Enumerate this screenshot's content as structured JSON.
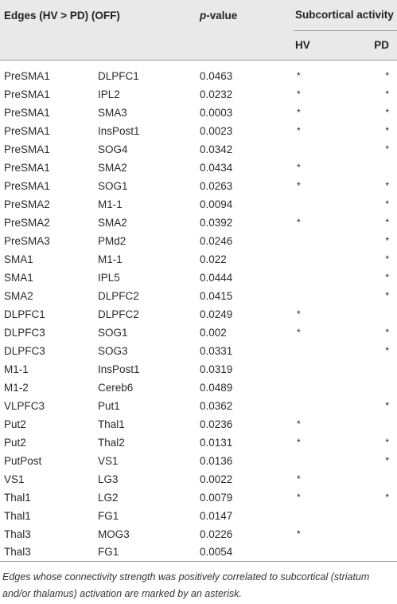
{
  "header": {
    "edges": "Edges (HV > PD) (OFF)",
    "pvalue_italic": "p",
    "pvalue_rest": "-value",
    "subcortical": "Subcortical activity",
    "hv": "HV",
    "pd": "PD"
  },
  "rows": [
    {
      "from": "PreSMA1",
      "to": "DLPFC1",
      "p": "0.0463",
      "hv": "*",
      "pd": "*"
    },
    {
      "from": "PreSMA1",
      "to": "IPL2",
      "p": "0.0232",
      "hv": "*",
      "pd": "*"
    },
    {
      "from": "PreSMA1",
      "to": "SMA3",
      "p": "0.0003",
      "hv": "*",
      "pd": "*"
    },
    {
      "from": "PreSMA1",
      "to": "InsPost1",
      "p": "0.0023",
      "hv": "*",
      "pd": "*"
    },
    {
      "from": "PreSMA1",
      "to": "SOG4",
      "p": "0.0342",
      "hv": "",
      "pd": "*"
    },
    {
      "from": "PreSMA1",
      "to": "SMA2",
      "p": "0.0434",
      "hv": "*",
      "pd": ""
    },
    {
      "from": "PreSMA1",
      "to": "SOG1",
      "p": "0.0263",
      "hv": "*",
      "pd": "*"
    },
    {
      "from": "PreSMA2",
      "to": "M1-1",
      "p": "0.0094",
      "hv": "",
      "pd": "*"
    },
    {
      "from": "PreSMA2",
      "to": "SMA2",
      "p": "0.0392",
      "hv": "*",
      "pd": "*"
    },
    {
      "from": "PreSMA3",
      "to": "PMd2",
      "p": "0.0246",
      "hv": "",
      "pd": "*"
    },
    {
      "from": "SMA1",
      "to": "M1-1",
      "p": "0.022",
      "hv": "",
      "pd": "*"
    },
    {
      "from": "SMA1",
      "to": "IPL5",
      "p": "0.0444",
      "hv": "",
      "pd": "*"
    },
    {
      "from": "SMA2",
      "to": "DLPFC2",
      "p": "0.0415",
      "hv": "",
      "pd": "*"
    },
    {
      "from": "DLPFC1",
      "to": "DLPFC2",
      "p": "0.0249",
      "hv": "*",
      "pd": ""
    },
    {
      "from": "DLPFC3",
      "to": "SOG1",
      "p": "0.002",
      "hv": "*",
      "pd": "*"
    },
    {
      "from": "DLPFC3",
      "to": "SOG3",
      "p": "0.0331",
      "hv": "",
      "pd": "*"
    },
    {
      "from": "M1-1",
      "to": "InsPost1",
      "p": "0.0319",
      "hv": "",
      "pd": ""
    },
    {
      "from": "M1-2",
      "to": "Cereb6",
      "p": "0.0489",
      "hv": "",
      "pd": ""
    },
    {
      "from": "VLPFC3",
      "to": "Put1",
      "p": "0.0362",
      "hv": "",
      "pd": "*"
    },
    {
      "from": "Put2",
      "to": "Thal1",
      "p": "0.0236",
      "hv": "*",
      "pd": ""
    },
    {
      "from": "Put2",
      "to": "Thal2",
      "p": "0.0131",
      "hv": "*",
      "pd": "*"
    },
    {
      "from": "PutPost",
      "to": "VS1",
      "p": "0.0136",
      "hv": "",
      "pd": "*"
    },
    {
      "from": "VS1",
      "to": "LG3",
      "p": "0.0022",
      "hv": "*",
      "pd": ""
    },
    {
      "from": "Thal1",
      "to": "LG2",
      "p": "0.0079",
      "hv": "*",
      "pd": "*"
    },
    {
      "from": "Thal1",
      "to": "FG1",
      "p": "0.0147",
      "hv": "",
      "pd": ""
    },
    {
      "from": "Thal3",
      "to": "MOG3",
      "p": "0.0226",
      "hv": "*",
      "pd": ""
    },
    {
      "from": "Thal3",
      "to": "FG1",
      "p": "0.0054",
      "hv": "",
      "pd": ""
    }
  ],
  "footnote": "Edges whose connectivity strength was positively correlated to subcortical (striatum and/or thalamus) activation are marked by an asterisk.",
  "colors": {
    "header_bg": "#e9e9e9",
    "rule": "#9a9a9a"
  }
}
